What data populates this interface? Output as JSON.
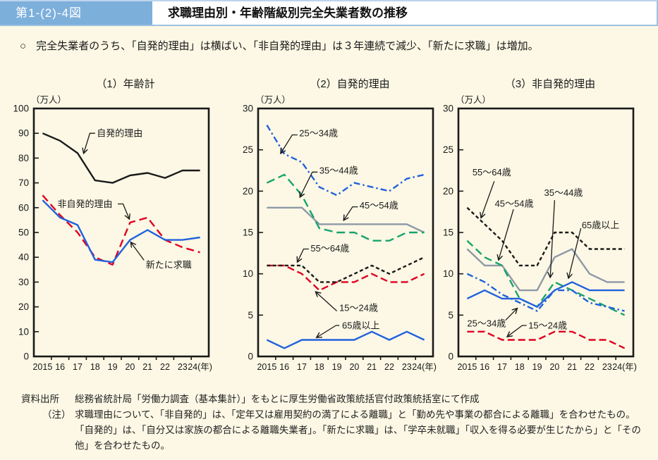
{
  "header": {
    "figure_label": "第1-(2)-4図",
    "title": "求職理由別・年齢階級別完全失業者数の推移"
  },
  "summary": {
    "bullet": "○",
    "text": "完全失業者のうち、「自発的理由」は横ばい、「非自発的理由」は３年連続で減少、「新たに求職」は増加。"
  },
  "colors": {
    "page_bg": "#fcf8e5",
    "badge_bg": "#7dafdb",
    "badge_text": "#ffffff",
    "frame": "#1a1a1a",
    "black_line": "#1a1a1a",
    "red_line": "#e00020",
    "blue_line": "#2161dd",
    "green_line": "#17a36d",
    "gray_line": "#8d99a6"
  },
  "chart_data": [
    {
      "type": "line",
      "title": "（1）年齢計",
      "unit_label": "（万人）",
      "x_tick_labels": [
        "2015",
        "16",
        "17",
        "18",
        "19",
        "20",
        "21",
        "22",
        "23",
        "24(年)"
      ],
      "ylim": [
        0,
        100
      ],
      "ytick_step": 10,
      "grid": false,
      "legend": "inline-annotations",
      "series": [
        {
          "name": "自発的理由",
          "color": "#1a1a1a",
          "dash": null,
          "values": [
            90,
            87,
            82,
            71,
            70,
            73,
            74,
            72,
            75,
            75
          ]
        },
        {
          "name": "非自発的理由",
          "color": "#e00020",
          "dash": "11,6",
          "values": [
            65,
            57,
            50,
            40,
            37,
            54,
            56,
            47,
            44,
            42
          ]
        },
        {
          "name": "新たに求職",
          "color": "#2161dd",
          "dash": null,
          "values": [
            63,
            56,
            53,
            39,
            38,
            47,
            51,
            47,
            47,
            48
          ]
        }
      ],
      "annotations": [
        {
          "text": "自発的理由",
          "label_x": 3.1,
          "label_y": 90,
          "arrow": [
            [
              3.0,
              90
            ],
            [
              2.7,
              90
            ],
            [
              2.35,
              82
            ]
          ]
        },
        {
          "text": "非自発的理由",
          "label_x": 0.85,
          "label_y": 61.5,
          "arrow": [
            [
              4.3,
              61.5
            ],
            [
              4.6,
              61.5
            ],
            [
              4.95,
              55.5
            ]
          ]
        },
        {
          "text": "新たに求職",
          "label_x": 5.9,
          "label_y": 37,
          "arrow": [
            [
              5.8,
              38.8
            ],
            [
              5.05,
              46
            ]
          ]
        }
      ]
    },
    {
      "type": "line",
      "title": "（2）自発的理由",
      "unit_label": "（万人）",
      "x_tick_labels": [
        "2015",
        "16",
        "17",
        "18",
        "19",
        "20",
        "21",
        "22",
        "23",
        "24(年)"
      ],
      "ylim": [
        0,
        30
      ],
      "ytick_step": 5,
      "grid": false,
      "legend": "inline-annotations",
      "series": [
        {
          "name": "45～54歳",
          "color": "#8d99a6",
          "dash": null,
          "values": [
            18,
            18,
            18,
            16,
            16,
            16,
            16,
            16,
            16,
            15
          ]
        },
        {
          "name": "35～44歳",
          "color": "#17a36d",
          "dash": "12,6",
          "values": [
            21,
            22,
            19.5,
            15.5,
            15,
            15,
            14,
            14,
            15,
            15
          ]
        },
        {
          "name": "25～34歳",
          "color": "#2161dd",
          "dash": "9,4,2.5,4",
          "values": [
            28,
            24.5,
            23.5,
            20.5,
            19.5,
            21,
            20.5,
            20,
            21.5,
            22
          ]
        },
        {
          "name": "15～24歳",
          "color": "#e00020",
          "dash": "10,5",
          "values": [
            11,
            11,
            10,
            8,
            9,
            9,
            10,
            9,
            9,
            10
          ]
        },
        {
          "name": "55～64歳",
          "color": "#1a1a1a",
          "dash": "5,3.5",
          "values": [
            11,
            11,
            11,
            9,
            9,
            10,
            11,
            10,
            11,
            12
          ]
        },
        {
          "name": "65歳以上",
          "color": "#2161dd",
          "dash": null,
          "values": [
            2,
            1,
            2,
            2,
            2,
            2,
            3,
            2,
            3,
            2
          ]
        }
      ],
      "annotations": [
        {
          "text": "25～34歳",
          "label_x": 1.85,
          "label_y": 27,
          "arrow": [
            [
              1.75,
              26.8
            ],
            [
              1.45,
              26.8
            ],
            [
              0.8,
              24.6
            ]
          ]
        },
        {
          "text": "35～44歳",
          "label_x": 3.0,
          "label_y": 22.5,
          "arrow": [
            [
              2.9,
              22.3
            ],
            [
              2.6,
              22.3
            ],
            [
              1.9,
              19.3
            ]
          ]
        },
        {
          "text": "45～54歳",
          "label_x": 5.3,
          "label_y": 18.3,
          "arrow": [
            [
              5.2,
              18.1
            ],
            [
              4.9,
              18.1
            ],
            [
              4.4,
              16.5
            ]
          ]
        },
        {
          "text": "55～64歳",
          "label_x": 2.5,
          "label_y": 13.1,
          "arrow": [
            [
              2.4,
              13.0
            ],
            [
              2.1,
              13.0
            ],
            [
              1.75,
              11.45
            ]
          ]
        },
        {
          "text": "15～24歳",
          "label_x": 4.14,
          "label_y": 5.9,
          "arrow": [
            [
              4.0,
              5.5
            ],
            [
              2.8,
              7.8
            ]
          ]
        },
        {
          "text": "65歳以上",
          "label_x": 4.3,
          "label_y": 3.75,
          "arrow": [
            [
              4.15,
              3.75
            ],
            [
              3.95,
              3.75
            ],
            [
              2.85,
              2.3
            ]
          ]
        }
      ]
    },
    {
      "type": "line",
      "title": "（3）非自発的理由",
      "unit_label": "（万人）",
      "x_tick_labels": [
        "2015",
        "16",
        "17",
        "18",
        "19",
        "20",
        "21",
        "22",
        "23",
        "24(年)"
      ],
      "ylim": [
        0,
        30
      ],
      "ytick_step": 5,
      "grid": false,
      "legend": "inline-annotations",
      "series": [
        {
          "name": "55～64歳",
          "color": "#1a1a1a",
          "dash": "5,3.5",
          "values": [
            18,
            16,
            14,
            11,
            11,
            15,
            15,
            13,
            13,
            13
          ]
        },
        {
          "name": "45～54歳",
          "color": "#8d99a6",
          "dash": null,
          "values": [
            13,
            11,
            11,
            8,
            8,
            12,
            13,
            10,
            9,
            9
          ]
        },
        {
          "name": "35～44歳",
          "color": "#17a36d",
          "dash": "11,6",
          "values": [
            14,
            12,
            11,
            7,
            6,
            9,
            8,
            7,
            6,
            5
          ]
        },
        {
          "name": "25～34歳",
          "color": "#2161dd",
          "dash": "9,4,2.5,4",
          "values": [
            10,
            9,
            7.5,
            6.5,
            5.5,
            8,
            8,
            6.5,
            6,
            5.5
          ]
        },
        {
          "name": "15～24歳",
          "color": "#e00020",
          "dash": "10,5",
          "values": [
            3,
            3,
            2,
            2,
            2,
            3,
            3,
            2,
            2,
            1
          ]
        },
        {
          "name": "65歳以上",
          "color": "#2161dd",
          "dash": null,
          "values": [
            7,
            8,
            7,
            7,
            6,
            8,
            9,
            8,
            8,
            8
          ]
        }
      ],
      "annotations": [
        {
          "text": "55～64歳",
          "label_x": 0.3,
          "label_y": 22.3,
          "arrow": [
            [
              1.55,
              21.2
            ],
            [
              0.8,
              16.8
            ]
          ]
        },
        {
          "text": "45～54歳",
          "label_x": 1.58,
          "label_y": 18.5,
          "arrow": [
            [
              2.65,
              17.8
            ],
            [
              1.8,
              11.7
            ]
          ]
        },
        {
          "text": "35～44歳",
          "label_x": 4.4,
          "label_y": 19.8,
          "arrow": [
            [
              5.0,
              18.9
            ],
            [
              4.75,
              9.6
            ]
          ]
        },
        {
          "text": "65歳以上",
          "label_x": 6.55,
          "label_y": 15.9,
          "arrow": [
            [
              6.5,
              15.5
            ],
            [
              5.8,
              9.5
            ]
          ]
        },
        {
          "text": "25～34歳",
          "label_x": 0.0,
          "label_y": 4.0,
          "arrow": [
            [
              2.2,
              4.4
            ],
            [
              2.85,
              5.8
            ]
          ]
        },
        {
          "text": "15～24歳",
          "label_x": 3.5,
          "label_y": 3.75,
          "arrow": [
            [
              3.4,
              3.75
            ],
            [
              3.15,
              3.75
            ],
            [
              2.3,
              2.4
            ]
          ]
        }
      ]
    }
  ],
  "notes": {
    "source_label": "資料出所",
    "source_text": "総務省統計局「労働力調査（基本集計）」をもとに厚生労働省政策統括官付政策統括室にて作成",
    "note_label": "（注）",
    "note_text": "求職理由について、「非自発的」は、「定年又は雇用契約の満了による離職」と「勤め先や事業の都合による離職」を合わせたもの。「自発的」は、「自分又は家族の都合による離職失業者」。「新たに求職」は、「学卒未就職」「収入を得る必要が生じたから」と「その他」を合わせたもの。"
  }
}
